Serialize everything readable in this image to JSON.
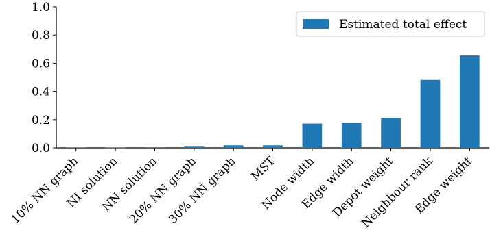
{
  "chart_data": {
    "type": "bar",
    "categories": [
      "10% NN graph",
      "NI solution",
      "NN solution",
      "20% NN graph",
      "30% NN graph",
      "MST",
      "Node width",
      "Edge width",
      "Depot weight",
      "Neighbour rank",
      "Edge weight"
    ],
    "series": [
      {
        "name": "Estimated total effect",
        "values": [
          0.003,
          0.002,
          0.004,
          0.013,
          0.018,
          0.018,
          0.172,
          0.178,
          0.212,
          0.482,
          0.655
        ],
        "color": "#1f77b4"
      }
    ],
    "ylim": [
      0,
      1.0
    ],
    "yticks": [
      "0.0",
      "0.2",
      "0.4",
      "0.6",
      "0.8",
      "1.0"
    ],
    "legend_position": "top-right",
    "grid": false
  }
}
